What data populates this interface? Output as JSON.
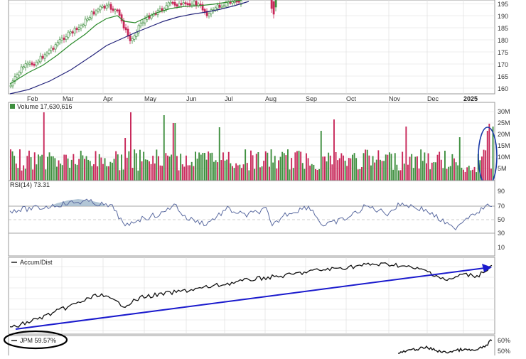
{
  "price_panel": {
    "y_ticks": [
      "160",
      "165",
      "170",
      "175",
      "180",
      "185",
      "190",
      "195"
    ],
    "x_labels": [
      "Feb",
      "Mar",
      "Apr",
      "May",
      "Jun",
      "Jul",
      "Aug",
      "Sep",
      "Oct",
      "Nov",
      "Dec",
      "2025"
    ]
  },
  "volume_panel": {
    "label": "Volume 17,630,616",
    "y_ticks": [
      "5M",
      "10M",
      "15M",
      "20M",
      "25M",
      "30M"
    ]
  },
  "rsi_panel": {
    "label": "RSI(14) 73.31",
    "y_ticks": [
      "10",
      "30",
      "50",
      "70",
      "90"
    ]
  },
  "ad_panel": {
    "label": "Accum/Dist"
  },
  "perf_panel": {
    "label": "JPM 59.57%",
    "y_ticks": [
      "60%",
      "50%"
    ]
  },
  "colors": {
    "up": "#3f8f3f",
    "down": "#c8285a",
    "ma_short": "#2a8a2a",
    "ma_long": "#23237a",
    "trend_arrow": "#1a1acd",
    "annotation": "#1a3aa8",
    "grid": "#dcdcdc",
    "panel_border": "#9a9a9a"
  },
  "chart_data": [
    {
      "type": "candlestick",
      "series": [
        {
          "kind": "price",
          "x_start": "Jan",
          "x_end": "Aug",
          "y_range": [
            160,
            197
          ],
          "values_approx": [
            162,
            168,
            172,
            178,
            183,
            188,
            192,
            194,
            189,
            178,
            182,
            188,
            193,
            196,
            194,
            191,
            193,
            195,
            197,
            196
          ]
        },
        {
          "kind": "ma_short",
          "y_approx": [
            164,
            167,
            171,
            175,
            179,
            183,
            186,
            187,
            188,
            189,
            190,
            191,
            193,
            194
          ]
        },
        {
          "kind": "ma_long",
          "y_approx": [
            160,
            162,
            165,
            168,
            172,
            176,
            179,
            182,
            184,
            186,
            188,
            190,
            192
          ]
        }
      ],
      "ylim": [
        158,
        198
      ]
    },
    {
      "type": "bar",
      "description_units": "M shares",
      "ylim": [
        0,
        33
      ],
      "highlighted": "last 5 bars circled"
    },
    {
      "type": "line",
      "ylim": [
        0,
        100
      ],
      "reference_lines": [
        70,
        50,
        30
      ],
      "last_value": 73.31
    },
    {
      "type": "line",
      "trend": "rising",
      "annotation": "arrow from lower-left to upper-right"
    },
    {
      "type": "line",
      "last_value": 59.57,
      "ylim": [
        45,
        62
      ]
    }
  ]
}
